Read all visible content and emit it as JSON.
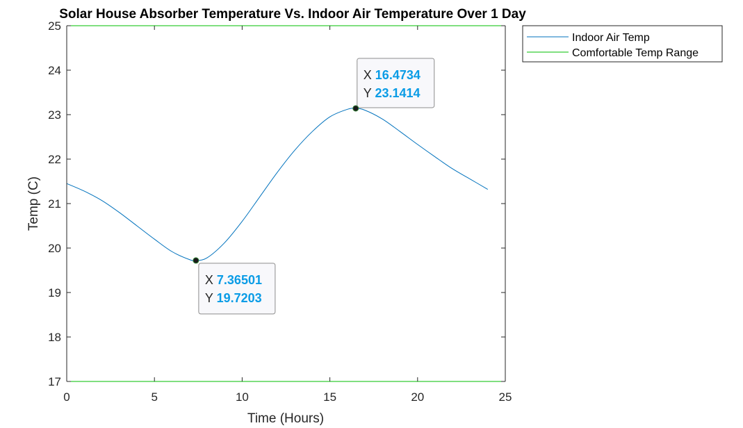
{
  "chart_data": {
    "type": "line",
    "title": "Solar House Absorber Temperature Vs. Indoor Air Temperature Over 1 Day",
    "xlabel": "Time (Hours)",
    "ylabel": "Temp (C)",
    "xlim": [
      0,
      25
    ],
    "ylim": [
      17,
      25
    ],
    "xticks": [
      0,
      5,
      10,
      15,
      20,
      25
    ],
    "yticks": [
      17,
      18,
      19,
      20,
      21,
      22,
      23,
      24,
      25
    ],
    "grid": false,
    "legend_position": "outside-top-right",
    "colors": {
      "indoor": "#0072bd",
      "comfort": "#00bf00",
      "axes": "#262626"
    },
    "series": [
      {
        "name": "Indoor Air Temp",
        "x": [
          0,
          1,
          2,
          3,
          4,
          5,
          6,
          7,
          7.36501,
          8,
          9,
          10,
          11,
          12,
          13,
          14,
          15,
          16,
          16.4734,
          17,
          18,
          19,
          20,
          21,
          22,
          23,
          24
        ],
        "y": [
          21.45,
          21.28,
          21.07,
          20.8,
          20.5,
          20.2,
          19.92,
          19.74,
          19.7203,
          19.78,
          20.12,
          20.6,
          21.15,
          21.7,
          22.2,
          22.62,
          22.95,
          23.12,
          23.1414,
          23.1,
          22.9,
          22.62,
          22.33,
          22.05,
          21.78,
          21.55,
          21.32
        ]
      },
      {
        "name": "Comfortable Temp Range",
        "lines": [
          17,
          25
        ],
        "x": [
          0,
          25
        ]
      }
    ],
    "datatips": [
      {
        "x_label": "X",
        "x_value": "7.36501",
        "y_label": "Y",
        "y_value": "19.7203",
        "x": 7.36501,
        "y": 19.7203
      },
      {
        "x_label": "X",
        "x_value": "16.4734",
        "y_label": "Y",
        "y_value": "23.1414",
        "x": 16.4734,
        "y": 23.1414
      }
    ]
  }
}
